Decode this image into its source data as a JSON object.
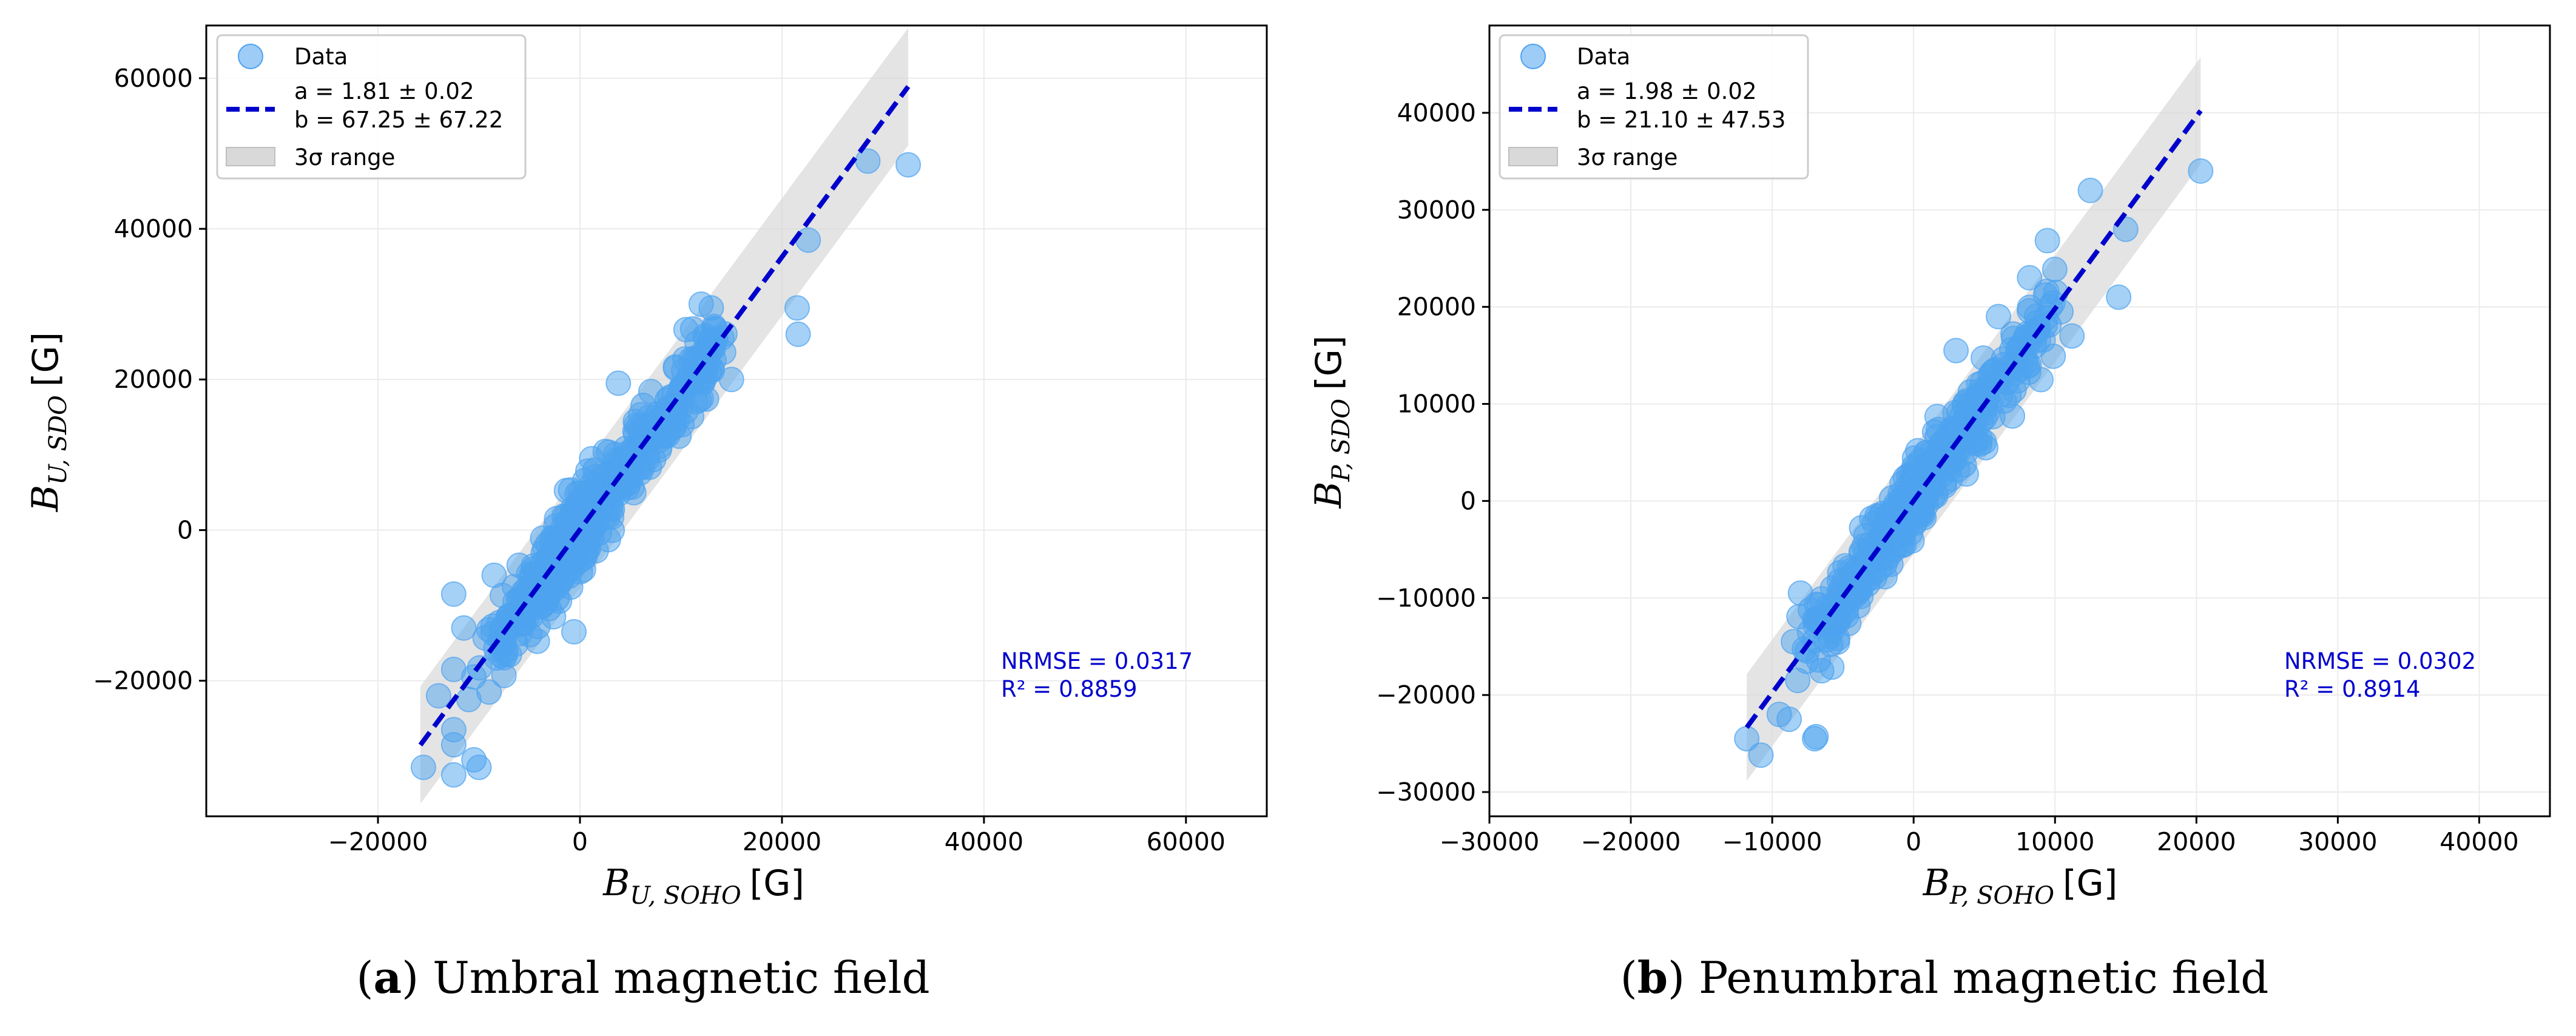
{
  "colors": {
    "points": "#4da3f0",
    "fit_line": "#0000cc",
    "band": "#d9d9d9",
    "grid": "#ebebeb",
    "stats": "#0000cc"
  },
  "chart_data": [
    {
      "type": "scatter",
      "caption_letter": "a",
      "caption_text": "Umbral magnetic field",
      "xlabel": {
        "symbol": "B",
        "subscript": "U, SOHO",
        "unit": "[G]"
      },
      "ylabel": {
        "symbol": "B",
        "subscript": "U, SDO",
        "unit": "[G]"
      },
      "xlim": [
        -37000,
        68000
      ],
      "ylim": [
        -38000,
        67000
      ],
      "xticks": [
        -20000,
        0,
        20000,
        40000,
        60000
      ],
      "yticks": [
        -20000,
        0,
        20000,
        40000,
        60000
      ],
      "xtick_labels": [
        "−20000",
        "0",
        "20000",
        "40000",
        "60000"
      ],
      "ytick_labels": [
        "−20000",
        "0",
        "20000",
        "40000",
        "60000"
      ],
      "grid": true,
      "fit": {
        "a": 1.81,
        "b": 67.25,
        "x_range": [
          -15800,
          32500
        ],
        "band_halfwidth": 7800
      },
      "legend": {
        "data_label": "Data",
        "fit_label_a": "a = 1.81 ± 0.02",
        "fit_label_b": "b = 67.25 ± 67.22",
        "band_label": "3σ range"
      },
      "stats": {
        "nrmse": "NRMSE = 0.0317",
        "r2": "R² = 0.8859"
      },
      "outliers": [
        [
          -15500,
          -31500
        ],
        [
          -12500,
          -32500
        ],
        [
          -10000,
          -31500
        ],
        [
          -10500,
          -30500
        ],
        [
          -12500,
          -28500
        ],
        [
          -12500,
          -26500
        ],
        [
          -14000,
          -22000
        ],
        [
          -11000,
          -22500
        ],
        [
          -9000,
          -21500
        ],
        [
          -12500,
          -18500
        ],
        [
          -10500,
          -19500
        ],
        [
          -12500,
          -8500
        ],
        [
          -8500,
          -6000
        ],
        [
          -11500,
          -13000
        ],
        [
          -600,
          -13500
        ],
        [
          21500,
          29500
        ],
        [
          21600,
          26000
        ],
        [
          22600,
          38500
        ],
        [
          28500,
          49000
        ],
        [
          32500,
          48500
        ],
        [
          12000,
          30000
        ],
        [
          13000,
          29500
        ],
        [
          15000,
          20000
        ],
        [
          3800,
          19500
        ]
      ],
      "cloud": {
        "x_min": -9000,
        "x_max": 14000,
        "n": 520,
        "sigma": 2600,
        "seed": 11
      }
    },
    {
      "type": "scatter",
      "caption_letter": "b",
      "caption_text": "Penumbral magnetic field",
      "xlabel": {
        "symbol": "B",
        "subscript": "P, SOHO",
        "unit": "[G]"
      },
      "ylabel": {
        "symbol": "B",
        "subscript": "P, SDO",
        "unit": "[G]"
      },
      "xlim": [
        -30000,
        45000
      ],
      "ylim": [
        -32500,
        49000
      ],
      "xticks": [
        -30000,
        -20000,
        -10000,
        0,
        10000,
        20000,
        30000,
        40000
      ],
      "yticks": [
        -30000,
        -20000,
        -10000,
        0,
        10000,
        20000,
        30000,
        40000
      ],
      "xtick_labels": [
        "−30000",
        "−20000",
        "−10000",
        "0",
        "10000",
        "20000",
        "30000",
        "40000"
      ],
      "ytick_labels": [
        "−30000",
        "−20000",
        "−10000",
        "0",
        "10000",
        "20000",
        "30000",
        "40000"
      ],
      "grid": true,
      "fit": {
        "a": 1.98,
        "b": 21.1,
        "x_range": [
          -11800,
          20300
        ],
        "band_halfwidth": 5500
      },
      "legend": {
        "data_label": "Data",
        "fit_label_a": "a = 1.98 ± 0.02",
        "fit_label_b": "b = 21.10 ± 47.53",
        "band_label": "3σ range"
      },
      "stats": {
        "nrmse": "NRMSE = 0.0302",
        "r2": "R² = 0.8914"
      },
      "outliers": [
        [
          -11800,
          -24500
        ],
        [
          -10800,
          -26200
        ],
        [
          -7000,
          -24500
        ],
        [
          -6900,
          -24300
        ],
        [
          -9500,
          -22000
        ],
        [
          -8800,
          -22500
        ],
        [
          -8200,
          -18500
        ],
        [
          -8500,
          -14500
        ],
        [
          -8000,
          -9500
        ],
        [
          -6500,
          -17500
        ],
        [
          12500,
          32000
        ],
        [
          15000,
          28000
        ],
        [
          20300,
          34000
        ],
        [
          14500,
          21000
        ],
        [
          11200,
          17000
        ],
        [
          9000,
          12500
        ],
        [
          3000,
          15500
        ],
        [
          6000,
          19000
        ],
        [
          8200,
          23000
        ]
      ],
      "cloud": {
        "x_min": -7500,
        "x_max": 10000,
        "n": 480,
        "sigma": 1900,
        "seed": 29
      }
    }
  ]
}
